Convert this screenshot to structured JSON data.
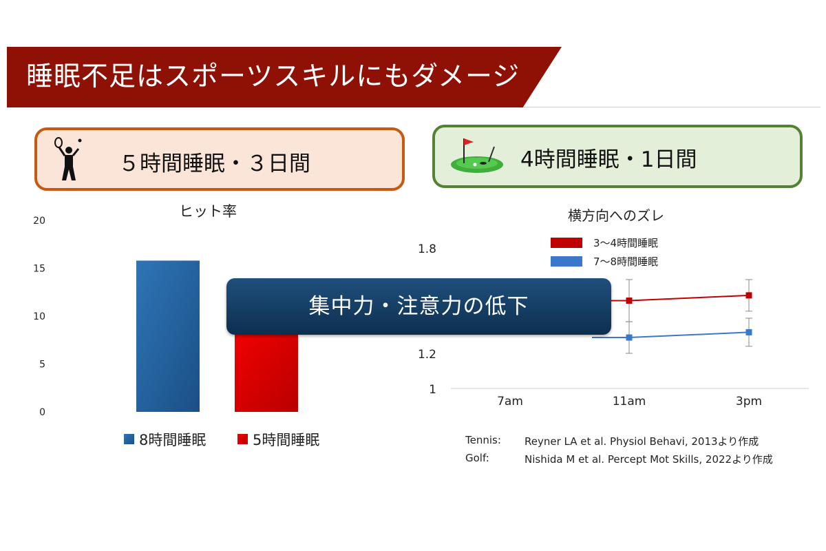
{
  "slide": {
    "title": "睡眠不足はスポーツスキルにもダメージ",
    "left_box_label": "５時間睡眠・３日間",
    "right_box_label": "4時間睡眠・1日間",
    "overlay_text": "集中力・注意力の低下"
  },
  "citations": [
    {
      "sport": "Tennis:",
      "source": "Reyner LA et al. Physiol Behavi, 2013より作成"
    },
    {
      "sport": "Golf:",
      "source": "Nishida M et al. Percept Mot Skills, 2022より作成"
    }
  ],
  "colors": {
    "banner": "#8f1005",
    "left_box_border": "#c55a11",
    "right_box_border": "#548235",
    "blue": "#2e75b6",
    "red": "#e00000",
    "line_red": "#c00000",
    "line_blue": "#3a78c9",
    "overlay": "#17406a"
  },
  "icons": {
    "left": "tennis-player-icon",
    "right": "golf-green-icon"
  },
  "chart_data": [
    {
      "type": "bar",
      "title": "ヒット率",
      "categories": [
        "8時間睡眠",
        "5時間睡眠"
      ],
      "values": [
        15.8,
        8.2
      ],
      "ylim": [
        0,
        20
      ],
      "yticks": [
        0,
        5,
        10,
        15,
        20
      ],
      "legend": [
        "8時間睡眠",
        "5時間睡眠"
      ],
      "legend_position": "bottom",
      "colors": [
        "#2e75b6",
        "#e00000"
      ]
    },
    {
      "type": "line",
      "title": "横方向へのズレ",
      "x": [
        "7am",
        "11am",
        "3pm"
      ],
      "ylim": [
        1,
        1.8
      ],
      "yticks": [
        1,
        1.2,
        1.8
      ],
      "series": [
        {
          "name": "3～4時間睡眠",
          "color": "#c00000",
          "values": [
            null,
            1.5,
            1.53
          ],
          "error": [
            null,
            0.12,
            0.09
          ]
        },
        {
          "name": "7～8時間睡眠",
          "color": "#3a78c9",
          "values": [
            null,
            1.29,
            1.32
          ],
          "error": [
            null,
            0.09,
            0.08
          ]
        }
      ],
      "legend_position": "top-right"
    }
  ]
}
